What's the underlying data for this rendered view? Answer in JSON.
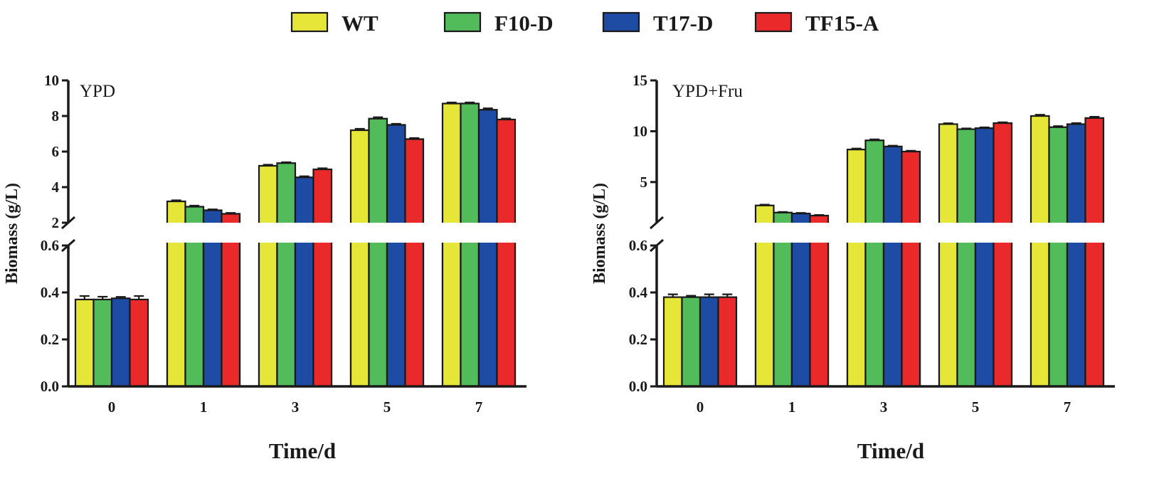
{
  "legend": [
    {
      "name": "WT",
      "color": "#e6e639"
    },
    {
      "name": "F10-D",
      "color": "#52bb5a"
    },
    {
      "name": "T17-D",
      "color": "#1e4ca5"
    },
    {
      "name": "TF15-A",
      "color": "#ea2a2a"
    }
  ],
  "chart_data": [
    {
      "type": "bar",
      "title": "YPD",
      "xlabel": "Time/d",
      "ylabel": "Biomass (g/L)",
      "categories": [
        "0",
        "1",
        "3",
        "5",
        "7"
      ],
      "y_axis_break": {
        "lower_range": [
          0,
          0.6
        ],
        "upper_range": [
          2,
          10
        ]
      },
      "lower_ticks": [
        "0.0",
        "0.2",
        "0.4",
        "0.6"
      ],
      "upper_ticks": [
        "2",
        "4",
        "6",
        "8",
        "10"
      ],
      "series": [
        {
          "name": "WT",
          "values": [
            0.37,
            3.2,
            5.2,
            7.2,
            8.7
          ],
          "errors": [
            0.015,
            0.06,
            0.06,
            0.08,
            0.06
          ]
        },
        {
          "name": "F10-D",
          "values": [
            0.37,
            2.9,
            5.35,
            7.85,
            8.7
          ],
          "errors": [
            0.012,
            0.06,
            0.05,
            0.08,
            0.06
          ]
        },
        {
          "name": "T17-D",
          "values": [
            0.375,
            2.7,
            4.55,
            7.5,
            8.35
          ],
          "errors": [
            0.006,
            0.05,
            0.06,
            0.06,
            0.08
          ]
        },
        {
          "name": "TF15-A",
          "values": [
            0.37,
            2.5,
            5.0,
            6.7,
            7.8
          ],
          "errors": [
            0.015,
            0.05,
            0.06,
            0.06,
            0.06
          ]
        }
      ]
    },
    {
      "type": "bar",
      "title": "YPD+Fru",
      "xlabel": "Time/d",
      "ylabel": "Biomass (g/L)",
      "categories": [
        "0",
        "1",
        "3",
        "5",
        "7"
      ],
      "y_axis_break": {
        "lower_range": [
          0,
          0.6
        ],
        "upper_range": [
          1.0,
          15
        ]
      },
      "lower_ticks": [
        "0.0",
        "0.2",
        "0.4",
        "0.6"
      ],
      "upper_ticks": [
        "5",
        "10",
        "15"
      ],
      "series": [
        {
          "name": "WT",
          "values": [
            0.38,
            2.7,
            8.2,
            10.7,
            11.5
          ],
          "errors": [
            0.012,
            0.08,
            0.1,
            0.08,
            0.12
          ]
        },
        {
          "name": "F10-D",
          "values": [
            0.38,
            2.0,
            9.1,
            10.2,
            10.4
          ],
          "errors": [
            0.006,
            0.06,
            0.1,
            0.08,
            0.1
          ]
        },
        {
          "name": "T17-D",
          "values": [
            0.38,
            1.9,
            8.5,
            10.3,
            10.7
          ],
          "errors": [
            0.012,
            0.06,
            0.08,
            0.08,
            0.1
          ]
        },
        {
          "name": "TF15-A",
          "values": [
            0.38,
            1.7,
            8.0,
            10.8,
            11.3
          ],
          "errors": [
            0.012,
            0.06,
            0.08,
            0.08,
            0.12
          ]
        }
      ]
    }
  ]
}
